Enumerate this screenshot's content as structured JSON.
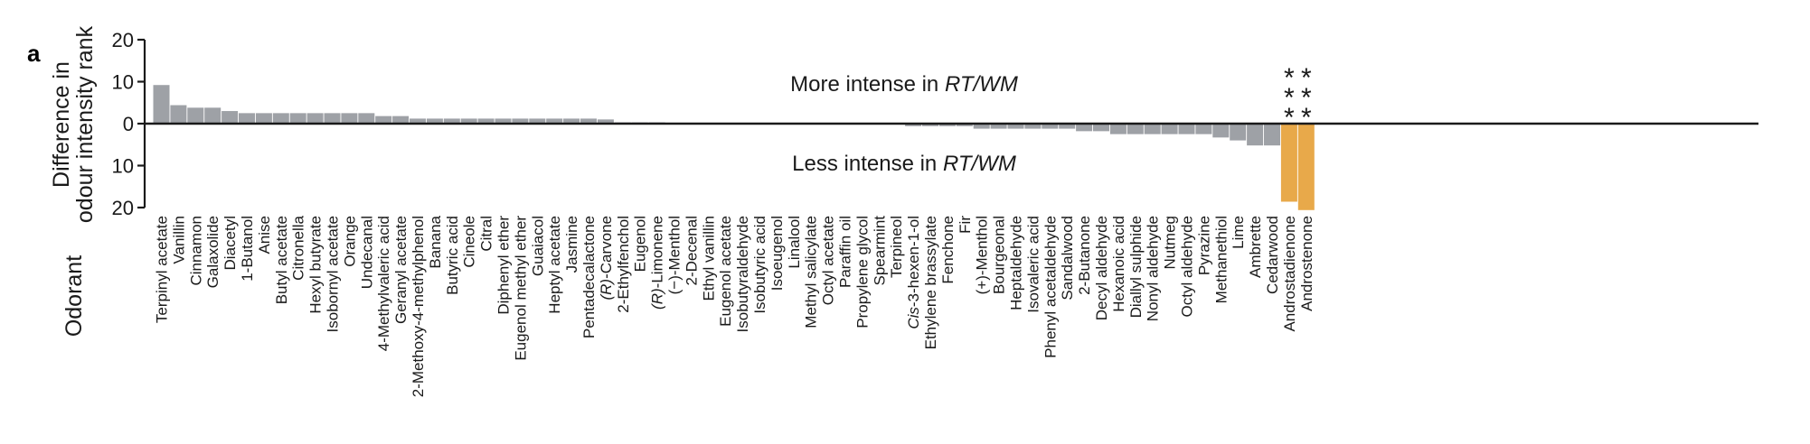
{
  "panel_label": "a",
  "chart_data": {
    "type": "bar",
    "ylabel_line1": "Difference in",
    "ylabel_line2": "odour intensity rank",
    "xlabel": "Odorant",
    "ylim": [
      -20,
      20
    ],
    "y_ticks": [
      20,
      10,
      0,
      10,
      20
    ],
    "y_tick_values": [
      20,
      10,
      0,
      -10,
      -20
    ],
    "annotation_top_prefix": "More intense in ",
    "annotation_top_italic": "RT/WM",
    "annotation_bottom_prefix": "Less intense in ",
    "annotation_bottom_italic": "RT/WM",
    "significance_marker": "*",
    "colors": {
      "default_bar": "#9ea1a6",
      "highlight_bar": "#e8a94a",
      "axis": "#1a1a1a"
    },
    "categories": [
      "Terpinyl acetate",
      "Vanillin",
      "Cinnamon",
      "Galaxolide",
      "Diacetyl",
      "1-Butanol",
      "Anise",
      "Butyl acetate",
      "Citronella",
      "Hexyl butyrate",
      "Isobornyl acetate",
      "Orange",
      "Undecanal",
      "4-Methylvaleric acid",
      "Geranyl acetate",
      "2-Methoxy-4-methylphenol",
      "Banana",
      "Butyric acid",
      "Cineole",
      "Citral",
      "Diphenyl ether",
      "Eugenol methyl ether",
      "Guaiacol",
      "Heptyl acetate",
      "Jasmine",
      "Pentadecalactone",
      "(R)-Carvone",
      "2-Ethylfenchol",
      "Eugenol",
      "(R)-Limonene",
      "(−)-Menthol",
      "2-Decenal",
      "Ethyl vanillin",
      "Eugenol acetate",
      "Isobutyraldehyde",
      "Isobutyric acid",
      "Isoeugenol",
      "Linalool",
      "Methyl salicylate",
      "Octyl acetate",
      "Paraffin oil",
      "Propylene glycol",
      "Spearmint",
      "Terpineol",
      "Cis-3-hexen-1-ol",
      "Ethylene brassylate",
      "Fenchone",
      "Fir",
      "(+)-Menthol",
      "Bourgeonal",
      "Heptaldehyde",
      "Isovaleric acid",
      "Phenyl acetaldehyde",
      "Sandalwood",
      "2-Butanone",
      "Decyl aldehyde",
      "Hexanoic acid",
      "Diallyl sulphide",
      "Nonyl aldehyde",
      "Nutmeg",
      "Octyl aldehyde",
      "Pyrazine",
      "Methanethiol",
      "Lime",
      "Ambrette",
      "Cedarwood",
      "Androstadienone",
      "Androstenone"
    ],
    "values": [
      9.2,
      4.4,
      3.8,
      3.8,
      3.0,
      2.5,
      2.5,
      2.5,
      2.5,
      2.5,
      2.5,
      2.5,
      2.5,
      1.8,
      1.8,
      1.2,
      1.2,
      1.2,
      1.2,
      1.2,
      1.2,
      1.2,
      1.2,
      1.2,
      1.2,
      1.2,
      1.0,
      0.3,
      0.3,
      0.3,
      0.2,
      0.2,
      0.2,
      0.2,
      0.2,
      0.2,
      0.2,
      0.2,
      0.2,
      0.2,
      0.2,
      0.2,
      0.2,
      0.2,
      -0.6,
      -0.6,
      -0.6,
      -0.6,
      -1.2,
      -1.2,
      -1.2,
      -1.2,
      -1.2,
      -1.2,
      -1.8,
      -1.8,
      -2.5,
      -2.5,
      -2.5,
      -2.5,
      -2.5,
      -2.5,
      -3.3,
      -4.0,
      -5.2,
      -5.2,
      -18.6,
      -20.6
    ],
    "highlighted": [
      "Androstadienone",
      "Androstenone"
    ],
    "significance_stars": [
      3,
      3
    ]
  }
}
